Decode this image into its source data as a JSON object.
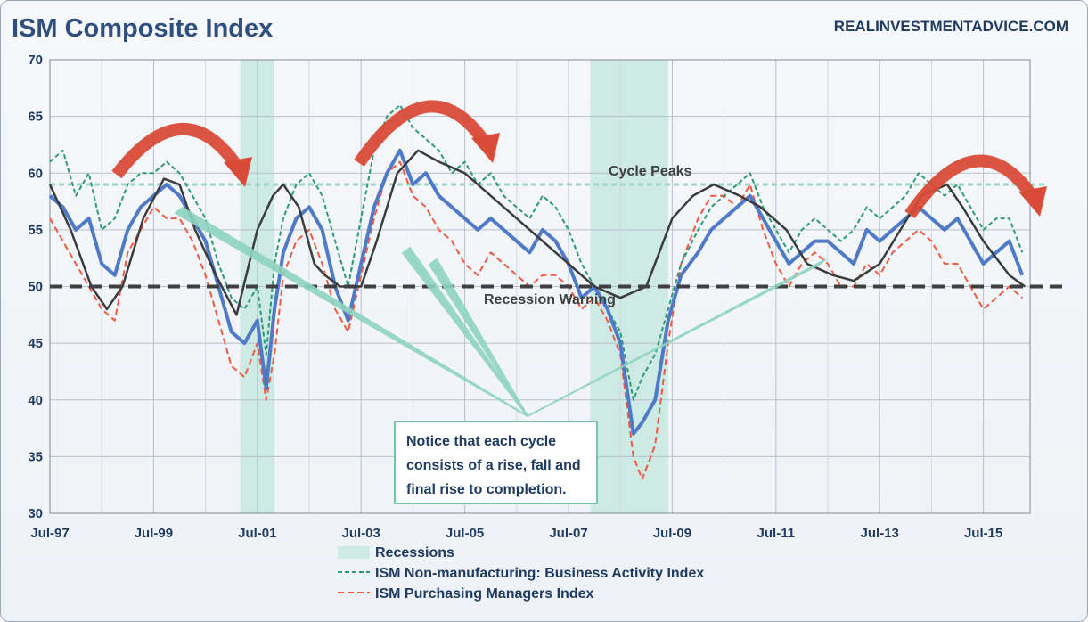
{
  "header": {
    "title": "ISM Composite Index",
    "site": "REALINVESTMENTADVICE.COM"
  },
  "annotations": {
    "cycle_peaks": "Cycle Peaks",
    "recession_warning": "Recession Warning",
    "note": "Notice that each cycle consists of a rise, fall and final rise to completion."
  },
  "legend": {
    "recessions": "Recessions",
    "non_mfg": "ISM Non-manufacturing: Business Activity Index",
    "pmi": "ISM Purchasing Managers Index"
  },
  "colors": {
    "composite": "#4f7ac7",
    "non_mfg": "#2e9a74",
    "pmi": "#ef5a44",
    "trend": "#3c3c3c",
    "recession": "#cdeae4",
    "cycle_peaks_line": "#9fd6c2",
    "warning_line": "#404040",
    "arrow": "#d94a37",
    "pointer": "#8ed4bf"
  },
  "chart_data": {
    "type": "line",
    "xlim": [
      1997.5,
      2016.4
    ],
    "ylim": [
      30,
      70
    ],
    "yticks": [
      30,
      35,
      40,
      45,
      50,
      55,
      60,
      65,
      70
    ],
    "xtick_labels": [
      "Jul-97",
      "Jul-99",
      "Jul-01",
      "Jul-03",
      "Jul-05",
      "Jul-07",
      "Jul-09",
      "Jul-11",
      "Jul-13",
      "Jul-15"
    ],
    "xtick_positions": [
      1997.5,
      1999.5,
      2001.5,
      2003.5,
      2005.5,
      2007.5,
      2009.5,
      2011.5,
      2013.5,
      2015.5
    ],
    "recessions": [
      [
        2001.17,
        2001.83
      ],
      [
        2007.92,
        2009.42
      ]
    ],
    "cycle_peaks_level": 59,
    "recession_warning_level": 50,
    "series": [
      {
        "name": "ISM Composite Index",
        "style": "solid",
        "x": [
          1997.5,
          1997.75,
          1998.0,
          1998.25,
          1998.5,
          1998.75,
          1999.0,
          1999.25,
          1999.5,
          1999.75,
          2000.0,
          2000.25,
          2000.5,
          2000.75,
          2001.0,
          2001.25,
          2001.5,
          2001.67,
          2001.83,
          2002.0,
          2002.25,
          2002.5,
          2002.75,
          2003.0,
          2003.25,
          2003.5,
          2003.75,
          2004.0,
          2004.25,
          2004.5,
          2004.75,
          2005.0,
          2005.25,
          2005.5,
          2005.75,
          2006.0,
          2006.25,
          2006.5,
          2006.75,
          2007.0,
          2007.25,
          2007.5,
          2007.75,
          2008.0,
          2008.25,
          2008.5,
          2008.75,
          2008.92,
          2009.17,
          2009.42,
          2009.67,
          2010.0,
          2010.25,
          2010.5,
          2010.75,
          2011.0,
          2011.25,
          2011.5,
          2011.75,
          2012.0,
          2012.25,
          2012.5,
          2012.75,
          2013.0,
          2013.25,
          2013.5,
          2013.75,
          2014.0,
          2014.25,
          2014.5,
          2014.75,
          2015.0,
          2015.25,
          2015.5,
          2015.75,
          2016.0,
          2016.25
        ],
        "y": [
          58,
          57,
          55,
          56,
          52,
          51,
          55,
          57,
          58,
          59,
          58,
          56,
          54,
          50,
          46,
          45,
          47,
          41,
          48,
          53,
          56,
          57,
          55,
          50,
          47,
          52,
          57,
          60,
          62,
          59,
          60,
          58,
          57,
          56,
          55,
          56,
          55,
          54,
          53,
          55,
          54,
          52,
          49,
          50,
          48,
          45,
          37,
          38,
          40,
          47,
          51,
          53,
          55,
          56,
          57,
          58,
          56,
          54,
          52,
          53,
          54,
          54,
          53,
          52,
          55,
          54,
          55,
          56,
          57,
          56,
          55,
          56,
          54,
          52,
          53,
          54,
          51
        ]
      },
      {
        "name": "ISM Non-manufacturing: Business Activity Index",
        "style": "dashed",
        "x": [
          1997.5,
          1997.75,
          1998.0,
          1998.25,
          1998.5,
          1998.75,
          1999.0,
          1999.25,
          1999.5,
          1999.75,
          2000.0,
          2000.25,
          2000.5,
          2000.75,
          2001.0,
          2001.25,
          2001.5,
          2001.67,
          2001.83,
          2002.0,
          2002.25,
          2002.5,
          2002.75,
          2003.0,
          2003.25,
          2003.5,
          2003.75,
          2004.0,
          2004.25,
          2004.5,
          2004.75,
          2005.0,
          2005.25,
          2005.5,
          2005.75,
          2006.0,
          2006.25,
          2006.5,
          2006.75,
          2007.0,
          2007.25,
          2007.5,
          2007.75,
          2008.0,
          2008.25,
          2008.5,
          2008.75,
          2008.92,
          2009.17,
          2009.42,
          2009.67,
          2010.0,
          2010.25,
          2010.5,
          2010.75,
          2011.0,
          2011.25,
          2011.5,
          2011.75,
          2012.0,
          2012.25,
          2012.5,
          2012.75,
          2013.0,
          2013.25,
          2013.5,
          2013.75,
          2014.0,
          2014.25,
          2014.5,
          2014.75,
          2015.0,
          2015.25,
          2015.5,
          2015.75,
          2016.0,
          2016.25
        ],
        "y": [
          61,
          62,
          58,
          60,
          55,
          56,
          59,
          60,
          60,
          61,
          60,
          58,
          56,
          52,
          49,
          48,
          50,
          44,
          52,
          56,
          59,
          60,
          58,
          54,
          50,
          56,
          62,
          65,
          66,
          64,
          63,
          62,
          60,
          61,
          59,
          60,
          58,
          57,
          56,
          58,
          57,
          55,
          52,
          50,
          48,
          46,
          40,
          42,
          44,
          48,
          52,
          55,
          57,
          58,
          59,
          60,
          57,
          55,
          53,
          55,
          56,
          55,
          54,
          55,
          57,
          56,
          57,
          58,
          60,
          59,
          58,
          59,
          57,
          55,
          56,
          56,
          53
        ]
      },
      {
        "name": "ISM Purchasing Managers Index",
        "style": "dashed",
        "x": [
          1997.5,
          1997.75,
          1998.0,
          1998.25,
          1998.5,
          1998.75,
          1999.0,
          1999.25,
          1999.5,
          1999.75,
          2000.0,
          2000.25,
          2000.5,
          2000.75,
          2001.0,
          2001.25,
          2001.5,
          2001.67,
          2001.83,
          2002.0,
          2002.25,
          2002.5,
          2002.75,
          2003.0,
          2003.25,
          2003.5,
          2003.75,
          2004.0,
          2004.25,
          2004.5,
          2004.75,
          2005.0,
          2005.25,
          2005.5,
          2005.75,
          2006.0,
          2006.25,
          2006.5,
          2006.75,
          2007.0,
          2007.25,
          2007.5,
          2007.75,
          2008.0,
          2008.25,
          2008.5,
          2008.75,
          2008.92,
          2009.17,
          2009.42,
          2009.67,
          2010.0,
          2010.25,
          2010.5,
          2010.75,
          2011.0,
          2011.25,
          2011.5,
          2011.75,
          2012.0,
          2012.25,
          2012.5,
          2012.75,
          2013.0,
          2013.25,
          2013.5,
          2013.75,
          2014.0,
          2014.25,
          2014.5,
          2014.75,
          2015.0,
          2015.25,
          2015.5,
          2015.75,
          2016.0,
          2016.25
        ],
        "y": [
          56,
          54,
          52,
          50,
          48,
          47,
          53,
          55,
          57,
          56,
          56,
          54,
          51,
          47,
          43,
          42,
          45,
          40,
          44,
          51,
          54,
          55,
          52,
          48,
          46,
          51,
          56,
          60,
          61,
          58,
          57,
          55,
          54,
          52,
          51,
          53,
          52,
          51,
          50,
          51,
          51,
          50,
          48,
          49,
          47,
          44,
          35,
          33,
          36,
          45,
          52,
          56,
          58,
          58,
          57,
          59,
          55,
          52,
          50,
          52,
          53,
          52,
          50,
          50,
          52,
          51,
          53,
          54,
          55,
          54,
          52,
          52,
          50,
          48,
          49,
          50,
          49
        ]
      },
      {
        "name": "Cycle trend",
        "style": "solid",
        "x": [
          1997.5,
          1997.9,
          1998.3,
          1998.6,
          1998.9,
          1999.3,
          1999.7,
          2000.0,
          2000.3,
          2000.7,
          2001.1,
          2001.5,
          2001.8,
          2002.0,
          2002.3,
          2002.6,
          2002.8,
          2003.1,
          2003.5,
          2003.8,
          2004.2,
          2004.6,
          2005.0,
          2005.5,
          2006.0,
          2006.5,
          2007.0,
          2007.5,
          2008.0,
          2008.5,
          2009.0,
          2009.5,
          2009.9,
          2010.3,
          2010.8,
          2011.2,
          2011.7,
          2012.1,
          2012.6,
          2013.0,
          2013.5,
          2013.9,
          2014.3,
          2014.8,
          2015.1,
          2015.5,
          2016.0,
          2016.3
        ],
        "y": [
          59,
          55,
          50,
          48,
          50,
          56,
          59.5,
          59,
          55,
          51,
          47.5,
          55,
          58,
          59,
          57,
          52,
          51,
          50,
          50,
          54,
          60,
          62,
          61,
          60,
          58,
          56,
          54,
          52,
          50,
          49,
          50,
          56,
          58,
          59,
          58,
          57,
          55,
          52,
          51,
          50.5,
          52,
          55,
          58,
          59,
          57,
          54,
          51,
          50
        ]
      }
    ]
  }
}
